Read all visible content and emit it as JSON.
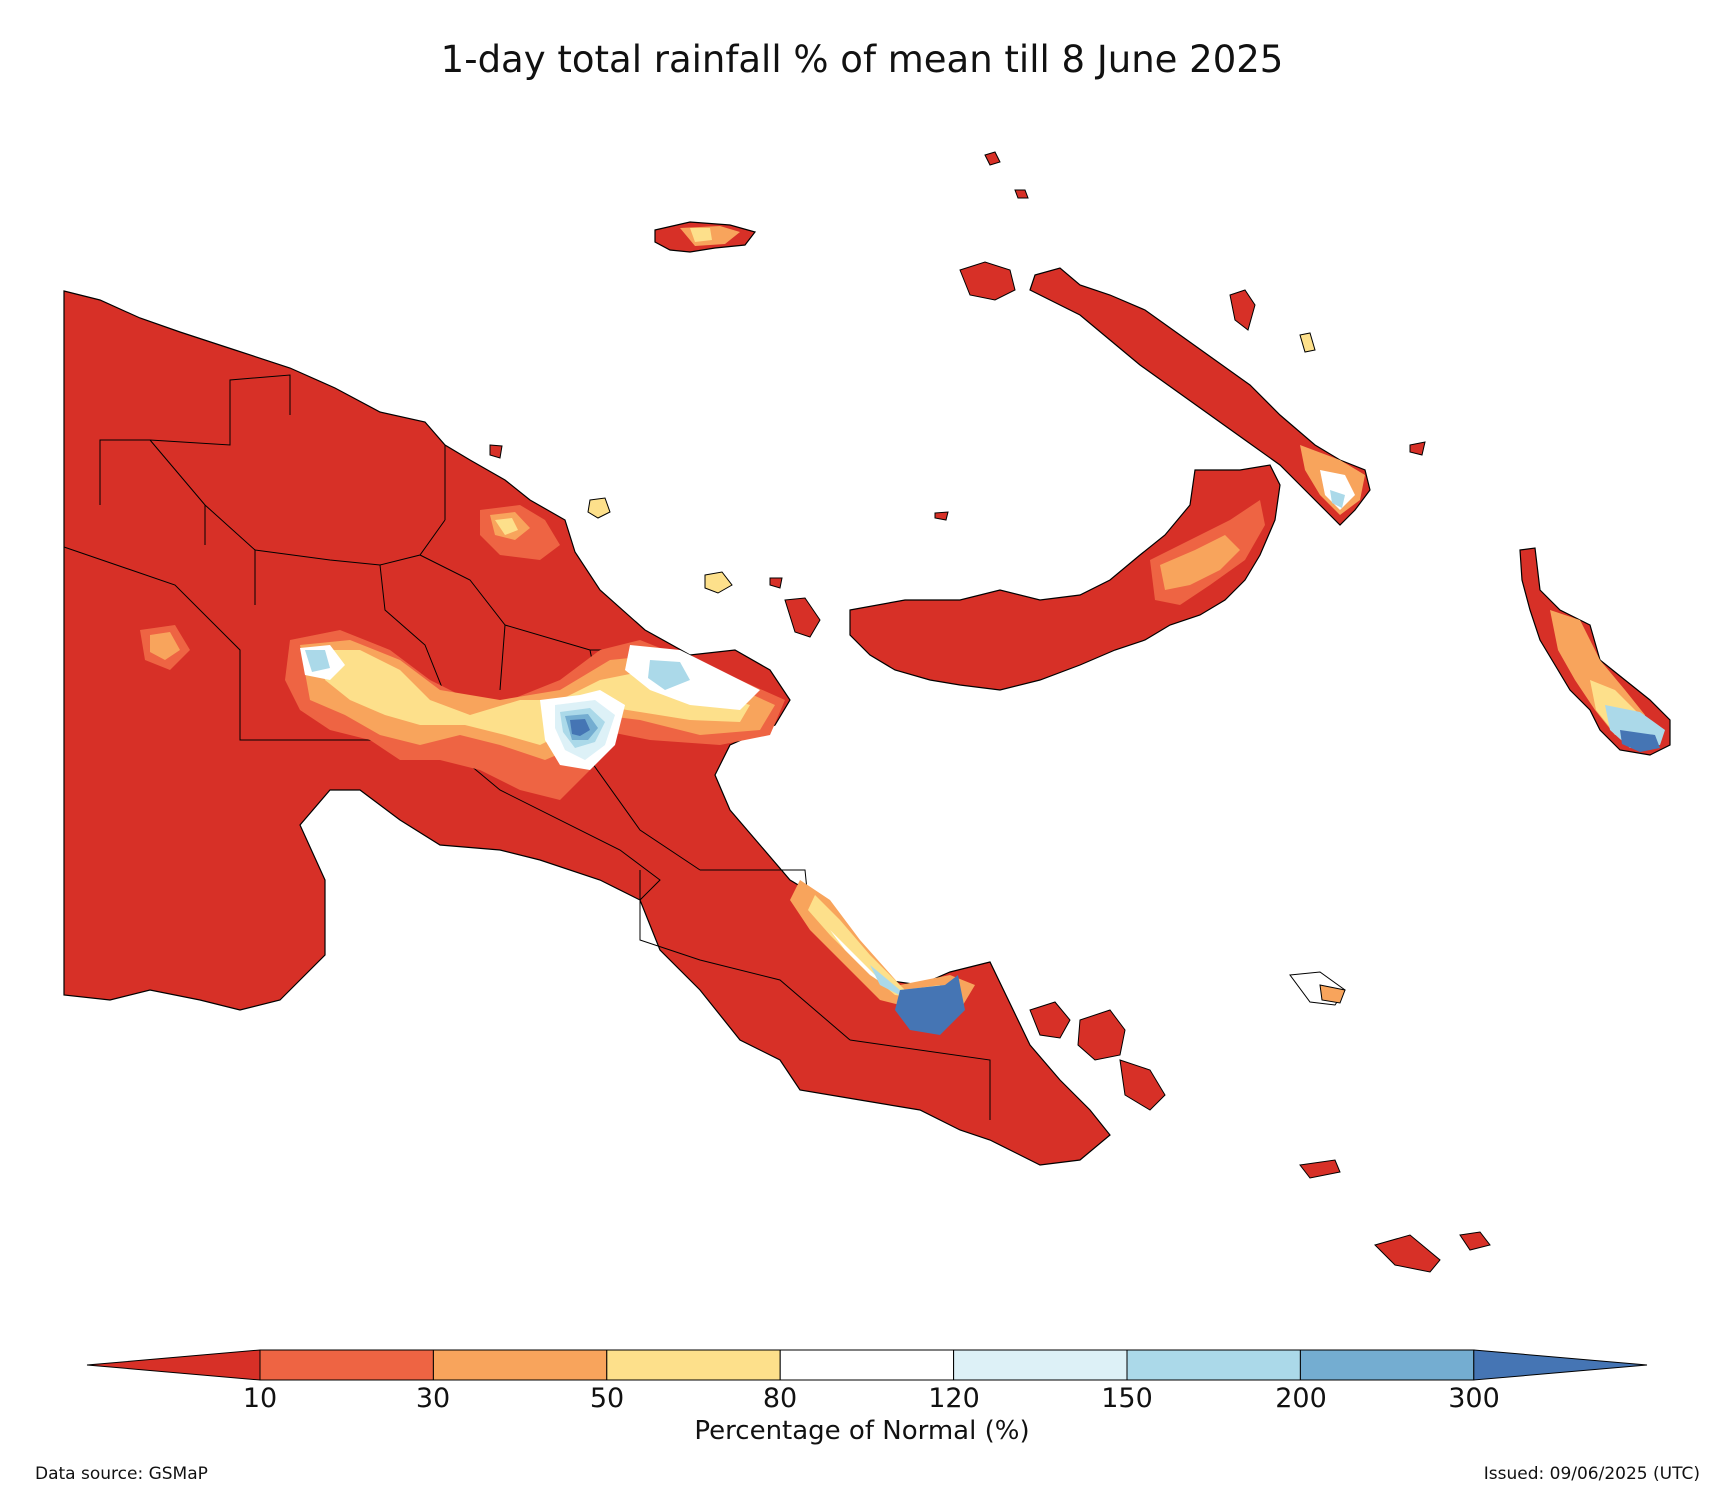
{
  "title": "1-day total rainfall % of mean till 8 June 2025",
  "colorbar": {
    "label": "Percentage of Normal (%)",
    "ticks": [
      "10",
      "30",
      "50",
      "80",
      "120",
      "150",
      "200",
      "300"
    ],
    "colors": [
      "#d73027",
      "#ee6443",
      "#f8a45c",
      "#fde08b",
      "#ffffff",
      "#ddf1f7",
      "#abd9e9",
      "#74add1",
      "#4575b4"
    ]
  },
  "map": {
    "region": "Papua New Guinea",
    "variable": "1-day total rainfall percentage of normal"
  },
  "footer": {
    "source": "Data source: GSMaP",
    "issued": "Issued: 09/06/2025 (UTC)"
  }
}
